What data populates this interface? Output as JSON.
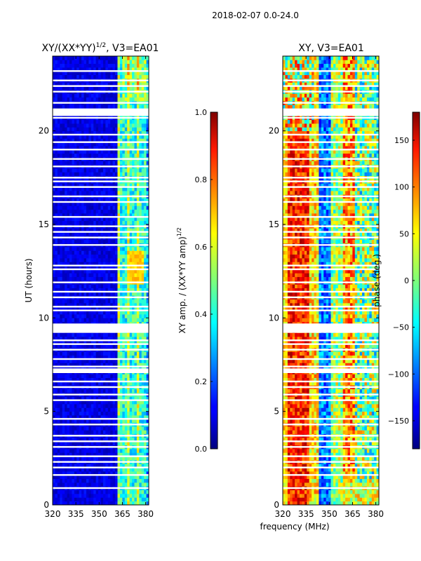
{
  "figure": {
    "suptitle": "2018-02-07 0.0-24.0",
    "shared_xlabel": "frequency (MHz)"
  },
  "chart_data": [
    {
      "type": "heatmap",
      "title": "XY/(XX*YY)",
      "title_exponent": "1/2",
      "title_suffix": ", V3=EA01",
      "xlabel": "",
      "ylabel": "UT (hours)",
      "xlim": [
        320,
        382
      ],
      "ylim": [
        0,
        24
      ],
      "xticks": [
        320,
        335,
        350,
        365,
        380
      ],
      "yticks": [
        0,
        5,
        10,
        15,
        20
      ],
      "colormap": "jet",
      "colorbar": {
        "label": "XY amp. / (XX*YY amp)",
        "label_exponent": "1/2",
        "range": [
          0.0,
          1.0
        ],
        "ticks": [
          "0.0",
          "0.2",
          "0.4",
          "0.6",
          "0.8",
          "1.0"
        ],
        "tick_values": [
          0.0,
          0.2,
          0.4,
          0.6,
          0.8,
          1.0
        ]
      },
      "notes": "Amplitude near 0 below ~362 MHz; elevated (0.3-0.7) in 362-382 MHz; peak ~0.7 near 12-13.5 UT around 372-378 MHz; white flagged rows at multiple UT."
    },
    {
      "type": "heatmap",
      "title": "XY, V3=EA01",
      "xlabel": "",
      "ylabel": "",
      "xlim": [
        320,
        382
      ],
      "ylim": [
        0,
        24
      ],
      "xticks": [
        320,
        335,
        350,
        365,
        380
      ],
      "yticks": [
        0,
        5,
        10,
        15,
        20
      ],
      "colormap": "jet",
      "colorbar": {
        "label": "phase (deg.)",
        "range": [
          -180,
          180
        ],
        "ticks": [
          "−150",
          "−100",
          "−50",
          "0",
          "50",
          "100",
          "150"
        ],
        "tick_values": [
          -150,
          -100,
          -50,
          0,
          50,
          100,
          150
        ]
      },
      "notes": "Noisy phase pattern; red/orange (~+150) near 320-335 MHz, blue (~-150) near 340-350 MHz, mixed cyan/green elsewhere; white flagged rows at multiple UT."
    }
  ],
  "flagged_rows_ut": [
    0.9,
    1.6,
    2.0,
    2.3,
    2.6,
    3.1,
    3.4,
    3.7,
    4.3,
    4.6,
    5.6,
    5.9,
    6.3,
    6.6,
    7.2,
    7.4,
    7.8,
    8.3,
    8.6,
    8.8,
    9.3,
    9.4,
    10.4,
    10.6,
    11.1,
    11.4,
    11.9,
    12.6,
    12.8,
    13.9,
    14.3,
    14.6,
    14.9,
    15.4,
    16.2,
    16.5,
    17.0,
    17.3,
    17.5,
    18.1,
    18.5,
    19.0,
    19.4,
    19.8,
    20.7,
    20.9,
    21.1,
    21.5,
    22.1,
    22.4,
    22.7,
    23.2
  ]
}
